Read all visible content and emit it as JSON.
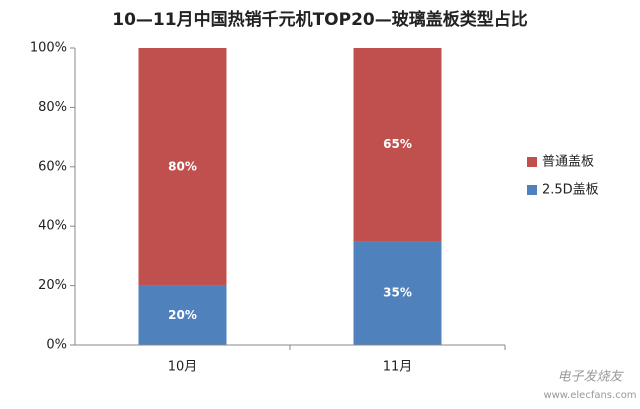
{
  "chart_data": {
    "type": "stacked_bar",
    "title": "10—11月中国热销千元机TOP20—玻璃盖板类型占比",
    "categories": [
      "10月",
      "11月"
    ],
    "series": [
      {
        "name": "2.5D盖板",
        "color": "#4f81bd",
        "values": [
          20,
          35
        ],
        "value_labels": [
          "20%",
          "35%"
        ]
      },
      {
        "name": "普通盖板",
        "color": "#c0504d",
        "values": [
          80,
          65
        ],
        "value_labels": [
          "80%",
          "65%"
        ]
      }
    ],
    "ylim": [
      0,
      100
    ],
    "yticks": [
      {
        "value": 0,
        "label": "0%"
      },
      {
        "value": 20,
        "label": "20%"
      },
      {
        "value": 40,
        "label": "40%"
      },
      {
        "value": 60,
        "label": "60%"
      },
      {
        "value": 80,
        "label": "80%"
      },
      {
        "value": 100,
        "label": "100%"
      }
    ],
    "grid": false,
    "legend": "right",
    "watermark": [
      "电子发烧友",
      "www.elecfans.com"
    ]
  }
}
